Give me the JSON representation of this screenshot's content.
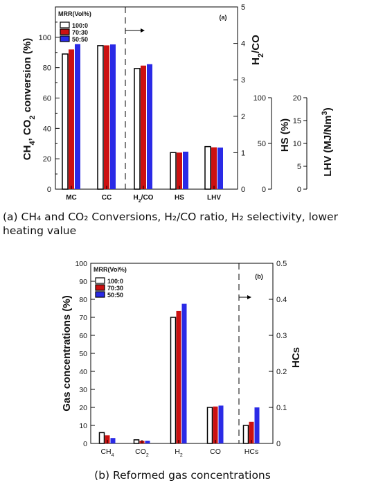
{
  "charts": {
    "colors": {
      "s1": "#ffffff",
      "s2": "#cc1111",
      "s3": "#2a2ae6",
      "border": "#000000"
    },
    "a": {
      "panel_label": "(a)",
      "legend_title": "MRR(Vol%)",
      "series": [
        "100:0",
        "70:30",
        "50:50"
      ],
      "ylabel_left": "CH4, CO2 conversion (%)",
      "ylabel_right1": "H2/CO",
      "ylabel_right2": "HS (%)",
      "ylabel_right3": "LHV (MJ/Nm3)",
      "categories": [
        "MC",
        "CC",
        "H2/CO",
        "HS",
        "LHV"
      ],
      "left_ticks": [
        "0",
        "20",
        "40",
        "60",
        "80",
        "100"
      ],
      "right1_ticks": [
        "0",
        "1",
        "2",
        "3",
        "4",
        "5"
      ],
      "right2_ticks": [
        "0",
        "50",
        "100"
      ],
      "right3_ticks": [
        "0",
        "5",
        "10",
        "15",
        "20"
      ]
    },
    "b": {
      "panel_label": "(b)",
      "legend_title": "MRR(Vol%)",
      "series": [
        "100:0",
        "70:30",
        "50:50"
      ],
      "ylabel_left": "Gas concentrations (%)",
      "ylabel_right": "HCs",
      "categories": [
        "CH4",
        "CO2",
        "H2",
        "CO",
        "HCs"
      ],
      "left_ticks": [
        "0",
        "10",
        "20",
        "30",
        "40",
        "50",
        "60",
        "70",
        "80",
        "90",
        "100"
      ],
      "right_ticks": [
        "0",
        "0.1",
        "0.2",
        "0.3",
        "0.4",
        "0.5"
      ]
    }
  },
  "chart_data": [
    {
      "type": "bar",
      "categories": [
        "MC",
        "CC",
        "H2/CO",
        "HS",
        "LHV"
      ],
      "series": [
        {
          "name": "100:0",
          "values": [
            89,
            94.5,
            3.31,
            40,
            9.3
          ]
        },
        {
          "name": "70:30",
          "values": [
            92,
            94.7,
            3.39,
            40,
            9.15
          ]
        },
        {
          "name": "50:50",
          "values": [
            95.5,
            95.3,
            3.43,
            41,
            9.1
          ]
        }
      ],
      "axes": {
        "left": {
          "label": "CH4, CO2 conversion (%)",
          "ylim": [
            0,
            120
          ],
          "categories": [
            "MC",
            "CC"
          ]
        },
        "right1": {
          "label": "H2/CO",
          "ylim": [
            0,
            5
          ],
          "categories": [
            "H2/CO"
          ]
        },
        "right2": {
          "label": "HS (%)",
          "ylim": [
            0,
            100
          ],
          "categories": [
            "HS"
          ]
        },
        "right3": {
          "label": "LHV (MJ/Nm3)",
          "ylim": [
            0,
            20
          ],
          "categories": [
            "LHV"
          ]
        }
      },
      "legend": "top-left",
      "grid": false
    },
    {
      "type": "bar",
      "categories": [
        "CH4",
        "CO2",
        "H2",
        "CO",
        "HCs"
      ],
      "series": [
        {
          "name": "100:0",
          "values": [
            6,
            2,
            70,
            20,
            0.05
          ]
        },
        {
          "name": "70:30",
          "values": [
            4.5,
            1.5,
            73.5,
            20.5,
            0.06
          ]
        },
        {
          "name": "50:50",
          "values": [
            3,
            1.5,
            77.5,
            21,
            0.1
          ]
        }
      ],
      "axes": {
        "left": {
          "label": "Gas concentrations (%)",
          "ylim": [
            0,
            100
          ],
          "categories": [
            "CH4",
            "CO2",
            "H2",
            "CO"
          ]
        },
        "right": {
          "label": "HCs",
          "ylim": [
            0,
            0.5
          ],
          "categories": [
            "HCs"
          ]
        }
      },
      "legend": "top-left",
      "grid": false
    }
  ],
  "captions": {
    "a": "(a) CH₄ and CO₂ Conversions, H₂/CO ratio, H₂ selectivity, lower heating value",
    "b": "(b) Reformed gas concentrations"
  }
}
